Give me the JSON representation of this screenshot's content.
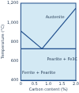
{
  "chart_data": {
    "type": "line",
    "x_label": "Carbon content (%)",
    "y_label": "Temperature (°C)",
    "xlim": [
      0,
      2
    ],
    "xticks": [
      0,
      0.5,
      1,
      1.5,
      2
    ],
    "ylim": [
      400,
      1200
    ],
    "yticks": [
      400,
      600,
      800,
      1000,
      1200
    ],
    "grid": false,
    "series": [
      {
        "x": [
          0,
          0.77
        ],
        "values": [
          912,
          727
        ],
        "color": "#1f4e8c"
      },
      {
        "x": [
          0.77,
          2
        ],
        "values": [
          727,
          1148
        ],
        "color": "#1f4e8c"
      },
      {
        "x": [
          0.02,
          2
        ],
        "values": [
          727,
          727
        ],
        "color": "#1f4e8c"
      }
    ],
    "annotations": [
      {
        "text": "Austenite",
        "x": 0.9,
        "y": 1050
      },
      {
        "text": "Pearlite + Fe3C",
        "x": 0.95,
        "y": 620
      },
      {
        "text": "Ferrite + Pearlite",
        "x": 0.05,
        "y": 480
      }
    ]
  }
}
